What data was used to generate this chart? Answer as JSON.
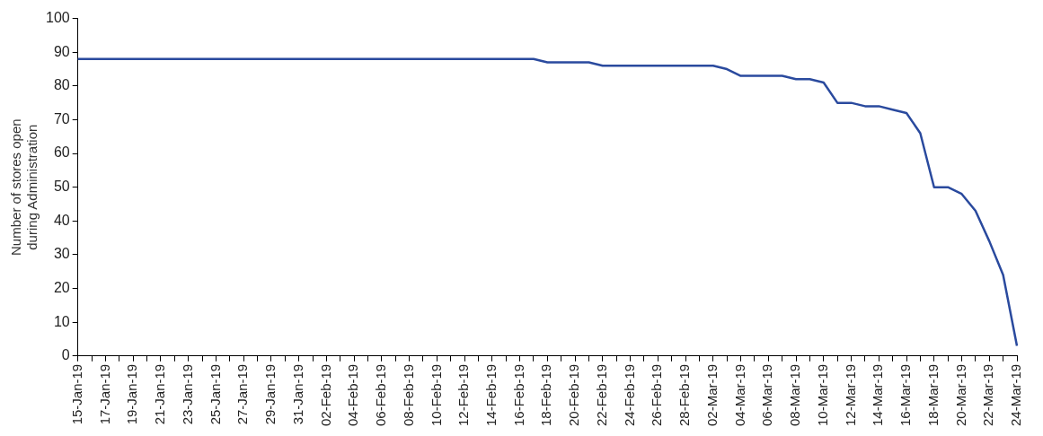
{
  "chart_data": {
    "type": "line",
    "ylabel": "Number of stores open during Administration",
    "categories": [
      "15-Jan-19",
      null,
      "17-Jan-19",
      null,
      "19-Jan-19",
      null,
      "21-Jan-19",
      null,
      "23-Jan-19",
      null,
      "25-Jan-19",
      null,
      "27-Jan-19",
      null,
      "29-Jan-19",
      null,
      "31-Jan-19",
      null,
      "02-Feb-19",
      null,
      "04-Feb-19",
      null,
      "06-Feb-19",
      null,
      "08-Feb-19",
      null,
      "10-Feb-19",
      null,
      "12-Feb-19",
      null,
      "14-Feb-19",
      null,
      "16-Feb-19",
      null,
      "18-Feb-19",
      null,
      "20-Feb-19",
      null,
      "22-Feb-19",
      null,
      "24-Feb-19",
      null,
      "26-Feb-19",
      null,
      "28-Feb-19",
      null,
      "02-Mar-19",
      null,
      "04-Mar-19",
      null,
      "06-Mar-19",
      null,
      "08-Mar-19",
      null,
      "10-Mar-19",
      null,
      "12-Mar-19",
      null,
      "14-Mar-19",
      null,
      "16-Mar-19",
      null,
      "18-Mar-19",
      null,
      "20-Mar-19",
      null,
      "22-Mar-19",
      null,
      "24-Mar-19"
    ],
    "series": [
      {
        "color": "#2a4a9e",
        "values": [
          88,
          88,
          88,
          88,
          88,
          88,
          88,
          88,
          88,
          88,
          88,
          88,
          88,
          88,
          88,
          88,
          88,
          88,
          88,
          88,
          88,
          88,
          88,
          88,
          88,
          88,
          88,
          88,
          88,
          88,
          88,
          88,
          88,
          88,
          87,
          87,
          87,
          87,
          86,
          86,
          86,
          86,
          86,
          86,
          86,
          86,
          86,
          85,
          83,
          83,
          83,
          83,
          82,
          82,
          81,
          75,
          75,
          74,
          74,
          73,
          72,
          66,
          50,
          50,
          48,
          43,
          34,
          24,
          3
        ]
      }
    ],
    "ylim": [
      0,
      100
    ],
    "yticks": [
      0,
      10,
      20,
      30,
      40,
      50,
      60,
      70,
      80,
      90,
      100
    ],
    "grid": false,
    "legend": false,
    "marker": "none",
    "line_style": "solid"
  }
}
